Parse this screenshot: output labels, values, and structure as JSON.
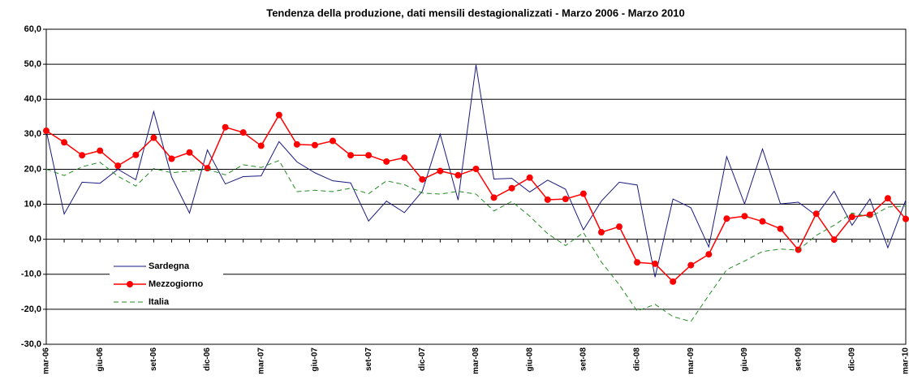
{
  "chart_data": {
    "type": "line",
    "title": "Tendenza della produzione, dati mensili destagionalizzati - Marzo 2006 - Marzo 2010",
    "categories": [
      "mar-06",
      null,
      null,
      "giu-06",
      null,
      null,
      "set-06",
      null,
      null,
      "dic-06",
      null,
      null,
      "mar-07",
      null,
      null,
      "giu-07",
      null,
      null,
      "set-07",
      null,
      null,
      "dic-07",
      null,
      null,
      "mar-08",
      null,
      null,
      "giu-08",
      null,
      null,
      "set-08",
      null,
      null,
      "dic-08",
      null,
      null,
      "mar-09",
      null,
      null,
      "giu-09",
      null,
      null,
      "set-09",
      null,
      null,
      "dic-09",
      null,
      null,
      "mar-10"
    ],
    "series": [
      {
        "name": "Sardegna",
        "color": "#1a1a80",
        "values": [
          31,
          7.2,
          16.3,
          16,
          20,
          17,
          36.5,
          17.8,
          7.5,
          25.5,
          15.8,
          17.9,
          18.1,
          27.9,
          22.1,
          19,
          16.7,
          16.1,
          5.2,
          10.9,
          7.6,
          13.7,
          30,
          11.2,
          49.8,
          17.2,
          17.4,
          13.5,
          16.9,
          14.3,
          2.7,
          10.9,
          16.3,
          15.5,
          -10.8,
          11.5,
          9,
          -2.2,
          23.6,
          10.1,
          25.8,
          10.1,
          10.6,
          6.8,
          13.7,
          4,
          11.5,
          -2.4,
          11.2
        ]
      },
      {
        "name": "Mezzogiorno",
        "color": "#ff0000",
        "values": [
          31,
          27.7,
          24,
          25.3,
          21,
          24.1,
          29,
          23,
          24.8,
          20.3,
          32,
          30.5,
          26.7,
          35.5,
          27.1,
          26.9,
          28.1,
          24,
          24,
          22.2,
          23.3,
          17.1,
          19.5,
          18.3,
          20.1,
          11.9,
          14.6,
          17.6,
          11.3,
          11.5,
          13,
          2,
          3.6,
          -6.6,
          -7,
          -12.1,
          -7.4,
          -4.3,
          5.9,
          6.6,
          5.1,
          3,
          -3,
          7.3,
          -0.1,
          6.4,
          7,
          11.7,
          5.8
        ]
      },
      {
        "name": "Italia",
        "color": "#228b22",
        "values": [
          20,
          18.2,
          20.7,
          22,
          18,
          15.2,
          20.2,
          19,
          19.5,
          20,
          18.4,
          21.3,
          20.5,
          22.5,
          13.6,
          14,
          13.6,
          14.6,
          13,
          16.7,
          15.6,
          13.2,
          12.9,
          13.7,
          12.9,
          8.1,
          10.8,
          6.6,
          1.6,
          -1.8,
          1.9,
          -6.5,
          -13,
          -20.5,
          -18.6,
          -22.1,
          -23.5,
          -16,
          -8.7,
          -6.2,
          -3.5,
          -2.8,
          -3.1,
          1.1,
          4,
          7.5,
          6.3,
          9.2,
          9.5
        ]
      }
    ],
    "ylim": [
      -30,
      60
    ],
    "yticks": [
      {
        "value": -30,
        "label": "-30,0"
      },
      {
        "value": -20,
        "label": "-20,0"
      },
      {
        "value": -10,
        "label": "-10,0"
      },
      {
        "value": 0,
        "label": "0,0"
      },
      {
        "value": 10,
        "label": "10,0"
      },
      {
        "value": 20,
        "label": "20,0"
      },
      {
        "value": 30,
        "label": "30,0"
      },
      {
        "value": 40,
        "label": "40,0"
      },
      {
        "value": 50,
        "label": "50,0"
      },
      {
        "value": 60,
        "label": "60,0"
      }
    ],
    "grid": true
  }
}
